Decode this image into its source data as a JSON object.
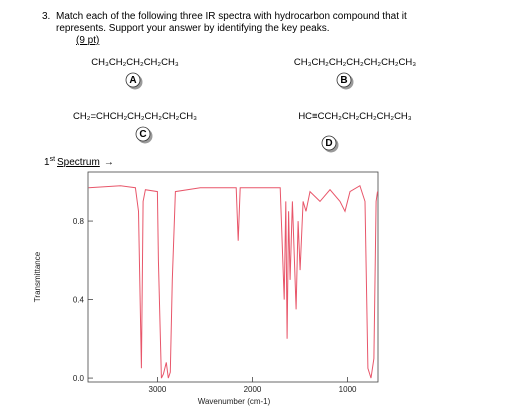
{
  "question": {
    "number": "3.",
    "line1": "Match each of the following three IR spectra with hydrocarbon compound that it",
    "line2": "represents.  Support your answer by identifying the key peaks.",
    "points": "(9 pt)"
  },
  "compounds": [
    {
      "formula": "CH₃CH₂CH₂CH₂CH₃",
      "label": "A"
    },
    {
      "formula": "CH₃CH₂CH₂CH₂CH₂CH₂CH₃",
      "label": "B"
    },
    {
      "formula": "CH₂=CHCH₂CH₂CH₂CH₂CH₃",
      "label": "C"
    },
    {
      "formula": "HC≡CCH₂CH₂CH₂CH₂CH₃",
      "label": "D"
    }
  ],
  "spectrum_heading": {
    "number": "1",
    "suffix": "st",
    "text": "Spectrum",
    "arrow": "→"
  },
  "chart_data": {
    "type": "line",
    "xlabel": "Wavenumber (cm-1)",
    "ylabel": "Transmittance",
    "color": "#e8566a",
    "x": [
      3724,
      3388,
      3231,
      3199,
      3168,
      3150,
      3126,
      3000,
      2990,
      2958,
      2937,
      2906,
      2885,
      2864,
      2843,
      2811,
      2549,
      2171,
      2150,
      2129,
      1709,
      1667,
      1650,
      1636,
      1620,
      1604,
      1580,
      1541,
      1520,
      1499,
      1468,
      1437,
      1395,
      1290,
      1185,
      1080,
      1027,
      975,
      870,
      817,
      786,
      754,
      723,
      700,
      685
    ],
    "values": [
      0.97,
      0.98,
      0.97,
      0.85,
      0.05,
      0.9,
      0.96,
      0.95,
      0.6,
      0.0,
      0.02,
      0.08,
      0.0,
      0.03,
      0.5,
      0.95,
      0.97,
      0.97,
      0.7,
      0.97,
      0.97,
      0.4,
      0.9,
      0.2,
      0.85,
      0.5,
      0.9,
      0.35,
      0.8,
      0.55,
      0.9,
      0.85,
      0.95,
      0.9,
      0.96,
      0.9,
      0.85,
      0.95,
      0.98,
      0.9,
      0.05,
      0.0,
      0.1,
      0.9,
      0.95
    ],
    "xlim": [
      3730,
      680
    ],
    "ylim": [
      -0.02,
      1.05
    ],
    "xticks": [
      3000,
      2000,
      1000
    ],
    "yticks": [
      {
        "value": 0,
        "label": "0.0"
      },
      {
        "value": 0.4,
        "label": "0.4"
      },
      {
        "value": 0.8,
        "label": "0.8"
      }
    ]
  }
}
